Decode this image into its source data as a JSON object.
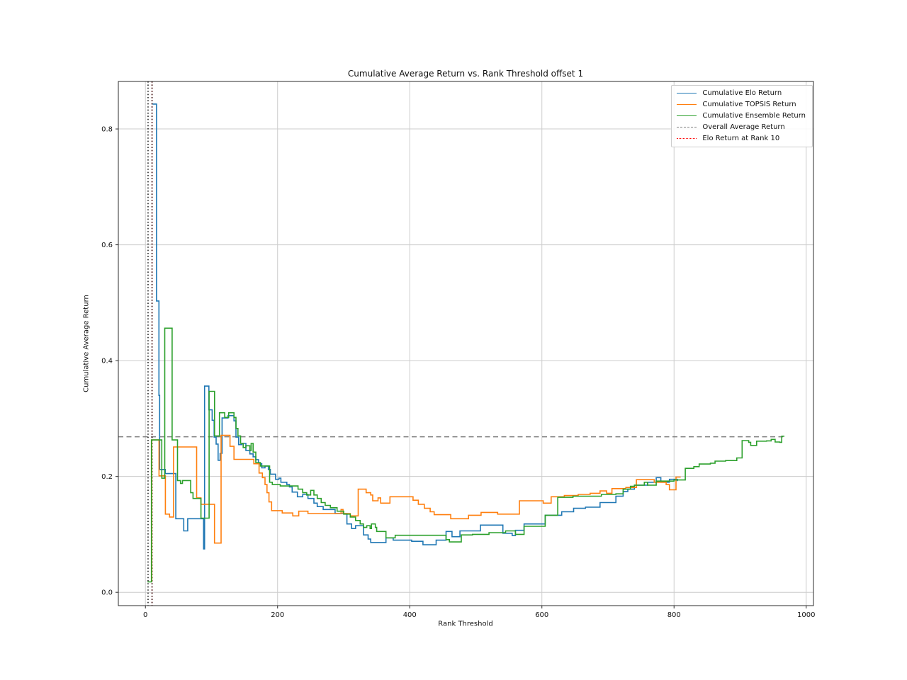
{
  "figure": {
    "title": "Cumulative Average Return vs. Rank Threshold offset 1",
    "xlabel": "Rank Threshold",
    "ylabel": "Cumulative Average Return",
    "background_color": "#ffffff",
    "grid_color": "#cccccc",
    "spine_color": "#2b2b2b",
    "text_color": "#111111"
  },
  "chart_data": {
    "type": "line",
    "title": "Cumulative Average Return vs. Rank Threshold offset 1",
    "xlabel": "Rank Threshold",
    "ylabel": "Cumulative Average Return",
    "xlim": [
      -41,
      1011
    ],
    "ylim": [
      -0.023,
      0.882
    ],
    "xticks": [
      0,
      200,
      400,
      600,
      800,
      1000
    ],
    "xtick_labels": [
      "0",
      "200",
      "400",
      "600",
      "800",
      "1000"
    ],
    "yticks": [
      0.0,
      0.2,
      0.4,
      0.6,
      0.8
    ],
    "ytick_labels": [
      "0.0",
      "0.2",
      "0.4",
      "0.6",
      "0.8"
    ],
    "grid": true,
    "step_mode": "post",
    "legend_position": "upper right",
    "series": [
      {
        "name": "Cumulative Elo Return",
        "color": "#1f77b4",
        "style": "solid",
        "points": [
          [
            10.9,
            0.843
          ],
          [
            16.8,
            0.503
          ],
          [
            20.4,
            0.34
          ],
          [
            21.5,
            0.212
          ],
          [
            30,
            0.205
          ],
          [
            46,
            0.127
          ],
          [
            58,
            0.106
          ],
          [
            64,
            0.127
          ],
          [
            88,
            0.075
          ],
          [
            89.5,
            0.356
          ],
          [
            96,
            0.315
          ],
          [
            101,
            0.297
          ],
          [
            104,
            0.268
          ],
          [
            107,
            0.256
          ],
          [
            110,
            0.228
          ],
          [
            113,
            0.24
          ],
          [
            116,
            0.301
          ],
          [
            125,
            0.305
          ],
          [
            134,
            0.296
          ],
          [
            137,
            0.268
          ],
          [
            141,
            0.255
          ],
          [
            146,
            0.257
          ],
          [
            152,
            0.245
          ],
          [
            158,
            0.239
          ],
          [
            163,
            0.234
          ],
          [
            167,
            0.229
          ],
          [
            171,
            0.222
          ],
          [
            176,
            0.215
          ],
          [
            181,
            0.218
          ],
          [
            186,
            0.212
          ],
          [
            189,
            0.204
          ],
          [
            197,
            0.195
          ],
          [
            202,
            0.197
          ],
          [
            205,
            0.19
          ],
          [
            214,
            0.186
          ],
          [
            218,
            0.182
          ],
          [
            222,
            0.173
          ],
          [
            230,
            0.165
          ],
          [
            238,
            0.169
          ],
          [
            246,
            0.162
          ],
          [
            255,
            0.154
          ],
          [
            260,
            0.148
          ],
          [
            269,
            0.143
          ],
          [
            287,
            0.136
          ],
          [
            305,
            0.118
          ],
          [
            312,
            0.11
          ],
          [
            318,
            0.115
          ],
          [
            330,
            0.099
          ],
          [
            337,
            0.092
          ],
          [
            341,
            0.086
          ],
          [
            364,
            0.094
          ],
          [
            375,
            0.09
          ],
          [
            403,
            0.088
          ],
          [
            420,
            0.082
          ],
          [
            440,
            0.09
          ],
          [
            455,
            0.105
          ],
          [
            464,
            0.096
          ],
          [
            476,
            0.106
          ],
          [
            507,
            0.116
          ],
          [
            541,
            0.102
          ],
          [
            555,
            0.098
          ],
          [
            560,
            0.107
          ],
          [
            573,
            0.118
          ],
          [
            605,
            0.133
          ],
          [
            630,
            0.139
          ],
          [
            648,
            0.145
          ],
          [
            666,
            0.147
          ],
          [
            688,
            0.155
          ],
          [
            712,
            0.166
          ],
          [
            723,
            0.174
          ],
          [
            730,
            0.178
          ],
          [
            740,
            0.185
          ],
          [
            760,
            0.19
          ],
          [
            773,
            0.198
          ],
          [
            780,
            0.19
          ],
          [
            793,
            0.195
          ],
          [
            805,
            0.192
          ]
        ]
      },
      {
        "name": "Cumulative TOPSIS Return",
        "color": "#ff7f0e",
        "style": "solid",
        "points": [
          [
            9.5,
            0.018
          ],
          [
            9.5,
            0.263
          ],
          [
            20.6,
            0.201
          ],
          [
            30.2,
            0.135
          ],
          [
            36.5,
            0.13
          ],
          [
            42.5,
            0.251
          ],
          [
            77.5,
            0.163
          ],
          [
            84,
            0.152
          ],
          [
            104.5,
            0.085
          ],
          [
            114.5,
            0.271
          ],
          [
            128,
            0.252
          ],
          [
            134,
            0.2295
          ],
          [
            164,
            0.222
          ],
          [
            172,
            0.206
          ],
          [
            177,
            0.198
          ],
          [
            181,
            0.186
          ],
          [
            184,
            0.172
          ],
          [
            187,
            0.156
          ],
          [
            191,
            0.141
          ],
          [
            207,
            0.137
          ],
          [
            223,
            0.132
          ],
          [
            232,
            0.14
          ],
          [
            246,
            0.136
          ],
          [
            296,
            0.143
          ],
          [
            299,
            0.136
          ],
          [
            310,
            0.132
          ],
          [
            322,
            0.178
          ],
          [
            334,
            0.172
          ],
          [
            341,
            0.168
          ],
          [
            344,
            0.158
          ],
          [
            352,
            0.163
          ],
          [
            356,
            0.154
          ],
          [
            370,
            0.165
          ],
          [
            405,
            0.159
          ],
          [
            413,
            0.152
          ],
          [
            422,
            0.145
          ],
          [
            431,
            0.139
          ],
          [
            437,
            0.134
          ],
          [
            462,
            0.127
          ],
          [
            489,
            0.133
          ],
          [
            508,
            0.138
          ],
          [
            533,
            0.135
          ],
          [
            566,
            0.158
          ],
          [
            602,
            0.154
          ],
          [
            614,
            0.165
          ],
          [
            634,
            0.167
          ],
          [
            655,
            0.169
          ],
          [
            673,
            0.171
          ],
          [
            688,
            0.175
          ],
          [
            698,
            0.171
          ],
          [
            706,
            0.179
          ],
          [
            727,
            0.181
          ],
          [
            743,
            0.1945
          ],
          [
            770,
            0.19
          ],
          [
            788,
            0.186
          ],
          [
            793,
            0.177
          ],
          [
            803,
            0.199
          ],
          [
            810,
            0.199
          ]
        ]
      },
      {
        "name": "Cumulative Ensemble Return",
        "color": "#2ca02c",
        "style": "solid",
        "points": [
          [
            3.2,
            0.018
          ],
          [
            9.1,
            0.263
          ],
          [
            24.7,
            0.197
          ],
          [
            29.2,
            0.456
          ],
          [
            40.4,
            0.263
          ],
          [
            48.5,
            0.193
          ],
          [
            53,
            0.188
          ],
          [
            56,
            0.193
          ],
          [
            68.5,
            0.172
          ],
          [
            72,
            0.162
          ],
          [
            84,
            0.128
          ],
          [
            96.4,
            0.347
          ],
          [
            104.6,
            0.27
          ],
          [
            112,
            0.31
          ],
          [
            120,
            0.302
          ],
          [
            126,
            0.31
          ],
          [
            134,
            0.302
          ],
          [
            137,
            0.283
          ],
          [
            140,
            0.27
          ],
          [
            144,
            0.257
          ],
          [
            148,
            0.25
          ],
          [
            152,
            0.253
          ],
          [
            158,
            0.245
          ],
          [
            160,
            0.257
          ],
          [
            163,
            0.242
          ],
          [
            167,
            0.224
          ],
          [
            174,
            0.218
          ],
          [
            188,
            0.19
          ],
          [
            192,
            0.186
          ],
          [
            204,
            0.1835
          ],
          [
            231,
            0.178
          ],
          [
            238,
            0.172
          ],
          [
            244,
            0.168
          ],
          [
            250,
            0.176
          ],
          [
            255,
            0.168
          ],
          [
            260,
            0.162
          ],
          [
            266,
            0.155
          ],
          [
            272,
            0.15
          ],
          [
            280,
            0.146
          ],
          [
            290,
            0.14
          ],
          [
            300,
            0.135
          ],
          [
            310,
            0.13
          ],
          [
            318,
            0.124
          ],
          [
            325,
            0.118
          ],
          [
            330,
            0.112
          ],
          [
            335,
            0.115
          ],
          [
            340,
            0.11
          ],
          [
            342,
            0.118
          ],
          [
            348,
            0.112
          ],
          [
            350,
            0.105
          ],
          [
            364,
            0.094
          ],
          [
            378,
            0.0985
          ],
          [
            407,
            0.0985
          ],
          [
            455,
            0.091
          ],
          [
            460,
            0.087
          ],
          [
            478,
            0.099
          ],
          [
            495,
            0.1
          ],
          [
            520,
            0.103
          ],
          [
            545,
            0.106
          ],
          [
            560,
            0.1
          ],
          [
            573,
            0.114
          ],
          [
            605,
            0.133
          ],
          [
            624,
            0.164
          ],
          [
            647,
            0.166
          ],
          [
            690,
            0.169
          ],
          [
            712,
            0.17
          ],
          [
            723,
            0.178
          ],
          [
            734,
            0.183
          ],
          [
            740,
            0.185
          ],
          [
            755,
            0.19
          ],
          [
            760,
            0.185
          ],
          [
            773,
            0.192
          ],
          [
            800,
            0.194
          ],
          [
            817,
            0.214
          ],
          [
            830,
            0.217
          ],
          [
            838,
            0.2215
          ],
          [
            855,
            0.223
          ],
          [
            862,
            0.2265
          ],
          [
            878,
            0.2275
          ],
          [
            895,
            0.232
          ],
          [
            903,
            0.262
          ],
          [
            913,
            0.259
          ],
          [
            916,
            0.2535
          ],
          [
            922,
            0.2535
          ],
          [
            925,
            0.261
          ],
          [
            940,
            0.2615
          ],
          [
            947,
            0.264
          ],
          [
            953,
            0.2595
          ],
          [
            960,
            0.259
          ],
          [
            963,
            0.2695
          ],
          [
            967,
            0.2695
          ]
        ]
      }
    ],
    "reference_lines": [
      {
        "name": "Overall Average Return",
        "orientation": "horizontal",
        "value": 0.2685,
        "x_start": -41,
        "x_end": 965,
        "color": "#7f7f7f",
        "style": "dashed"
      },
      {
        "name": "Elo Return at Rank 10",
        "orientation": "vertical",
        "value": 10,
        "color": "#ff0000",
        "style": "dotted"
      },
      {
        "name": "black dotted marker A",
        "orientation": "vertical",
        "value": 4,
        "color": "#000000",
        "style": "dotted"
      },
      {
        "name": "black dotted marker B",
        "orientation": "vertical",
        "value": 10,
        "color": "#000000",
        "style": "dotted"
      }
    ],
    "legend": [
      {
        "label": "Cumulative Elo Return",
        "color": "#1f77b4",
        "style": "solid"
      },
      {
        "label": "Cumulative TOPSIS Return",
        "color": "#ff7f0e",
        "style": "solid"
      },
      {
        "label": "Cumulative Ensemble Return",
        "color": "#2ca02c",
        "style": "solid"
      },
      {
        "label": "Overall Average Return",
        "color": "#7f7f7f",
        "style": "dashed"
      },
      {
        "label": "Elo Return at Rank 10",
        "color": "#ff0000",
        "style": "dotted"
      }
    ]
  }
}
